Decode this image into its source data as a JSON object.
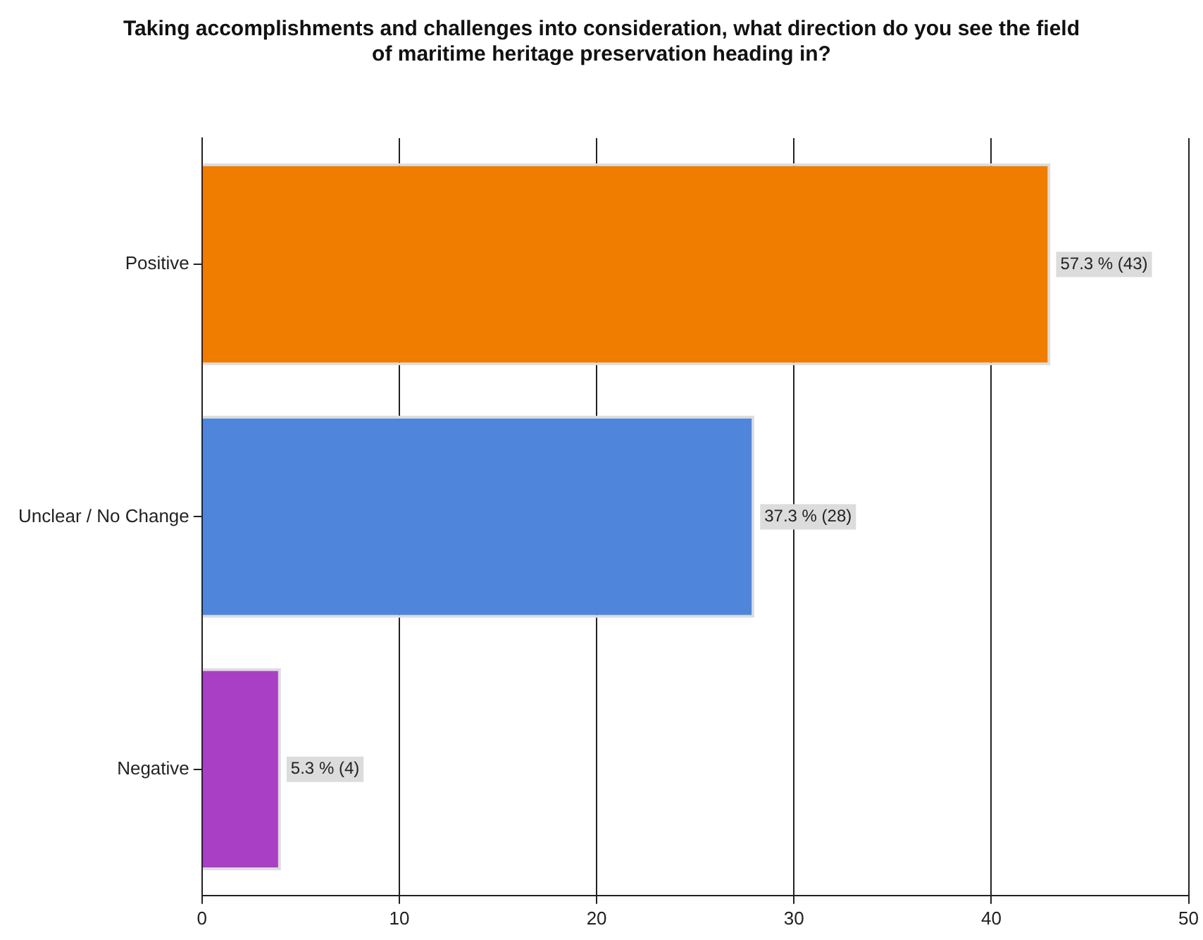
{
  "chart_data": {
    "type": "bar",
    "orientation": "horizontal",
    "title": "Taking accomplishments and challenges into consideration, what direction do you see the field\nof maritime heritage preservation heading in?",
    "categories": [
      "Positive",
      "Unclear / No Change",
      "Negative"
    ],
    "values": [
      43,
      28,
      4
    ],
    "colors": [
      "#f07c00",
      "#4f86dc",
      "#a83fc4"
    ],
    "value_labels": [
      "57.3 % (43)",
      "37.3 % (28)",
      "5.3 % (4)"
    ],
    "xlim": [
      0,
      50
    ],
    "xticks": [
      0,
      10,
      20,
      30,
      40,
      50
    ],
    "grid": "x",
    "legend": false
  }
}
